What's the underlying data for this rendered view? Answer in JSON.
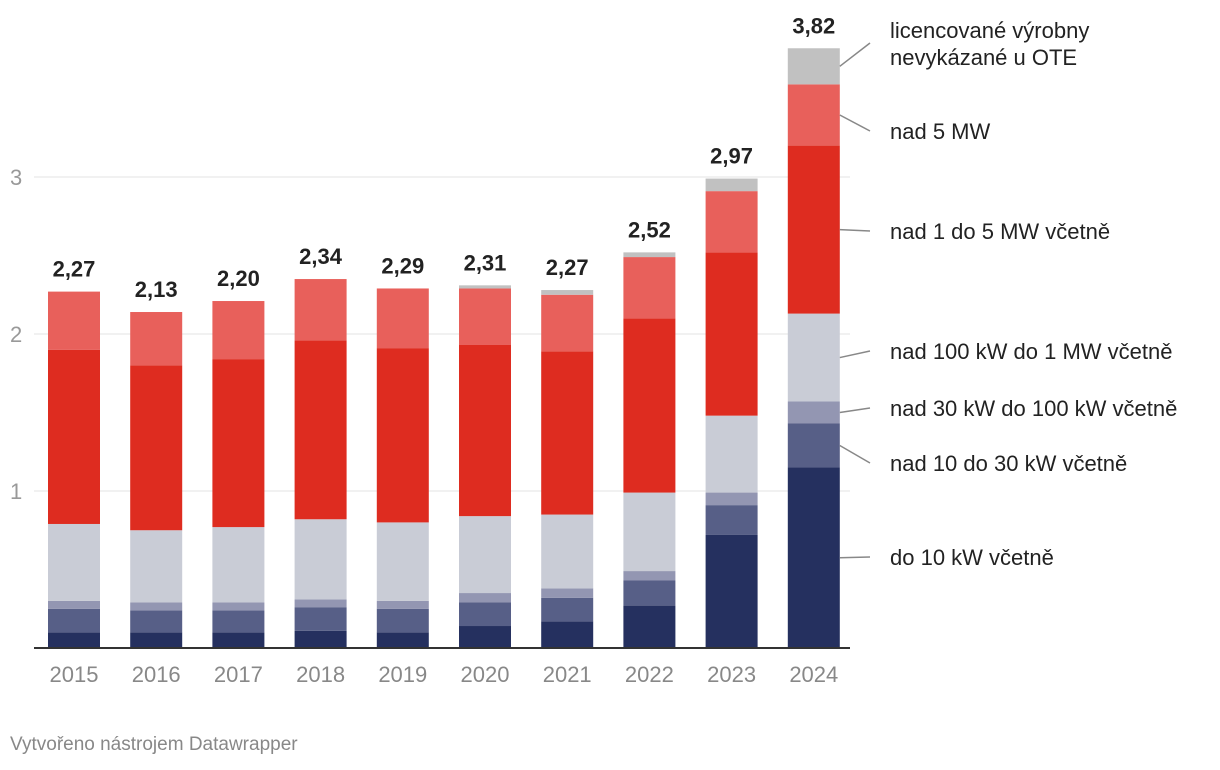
{
  "chart_data": {
    "type": "bar",
    "stacked": true,
    "categories": [
      "2015",
      "2016",
      "2017",
      "2018",
      "2019",
      "2020",
      "2021",
      "2022",
      "2023",
      "2024"
    ],
    "totals": [
      "2,27",
      "2,13",
      "2,20",
      "2,34",
      "2,29",
      "2,31",
      "2,27",
      "2,52",
      "2,97",
      "3,82"
    ],
    "ylim": [
      0,
      3.5
    ],
    "yticks": [
      1,
      2,
      3
    ],
    "ytick_labels": [
      "1",
      "2",
      "3"
    ],
    "grid": true,
    "series": [
      {
        "name": "do 10 kW včetně",
        "color": "#25305f",
        "values": [
          0.1,
          0.1,
          0.1,
          0.11,
          0.1,
          0.14,
          0.17,
          0.27,
          0.72,
          1.15
        ]
      },
      {
        "name": "nad 10 do 30 kW včetně",
        "color": "#575f87",
        "values": [
          0.15,
          0.14,
          0.14,
          0.15,
          0.15,
          0.15,
          0.15,
          0.16,
          0.19,
          0.28
        ]
      },
      {
        "name": "nad 30 kW do 100 kW včetně",
        "color": "#9396b2",
        "values": [
          0.05,
          0.05,
          0.05,
          0.05,
          0.05,
          0.06,
          0.06,
          0.06,
          0.08,
          0.14
        ]
      },
      {
        "name": "nad 100 kW do 1 MW včetně",
        "color": "#c9ccd6",
        "values": [
          0.49,
          0.46,
          0.48,
          0.51,
          0.5,
          0.49,
          0.47,
          0.5,
          0.49,
          0.56
        ]
      },
      {
        "name": "nad 1 do 5 MW včetně",
        "color": "#de2c20",
        "values": [
          1.11,
          1.05,
          1.07,
          1.14,
          1.11,
          1.09,
          1.04,
          1.11,
          1.04,
          1.07
        ]
      },
      {
        "name": "nad 5 MW",
        "color": "#e8605b",
        "values": [
          0.37,
          0.34,
          0.37,
          0.39,
          0.38,
          0.36,
          0.36,
          0.39,
          0.39,
          0.39
        ]
      },
      {
        "name": "licencované výrobny nevykázané u OTE",
        "color": "#c1c1c1",
        "values": [
          0.0,
          0.0,
          0.0,
          0.0,
          0.0,
          0.02,
          0.03,
          0.03,
          0.08,
          0.23
        ]
      }
    ],
    "legend": [
      {
        "lines": [
          "licencované výrobny",
          "nevykázané u OTE"
        ]
      },
      {
        "lines": [
          "nad 5 MW"
        ]
      },
      {
        "lines": [
          "nad 1 do 5 MW včetně"
        ]
      },
      {
        "lines": [
          "nad 100 kW do 1 MW včetně"
        ]
      },
      {
        "lines": [
          "nad 30 kW do 100 kW včetně"
        ]
      },
      {
        "lines": [
          "nad 10 do 30 kW včetně"
        ]
      },
      {
        "lines": [
          "do 10 kW včetně"
        ]
      }
    ],
    "legend_placement": "right"
  },
  "footer": {
    "credit": "Vytvořeno nástrojem Datawrapper"
  }
}
